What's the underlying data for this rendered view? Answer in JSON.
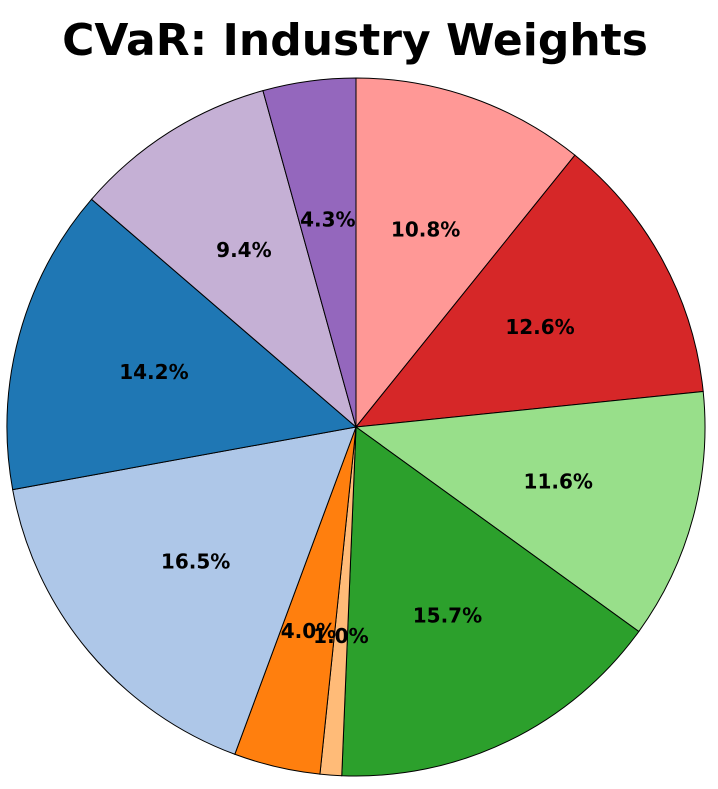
{
  "chart_data": {
    "type": "pie",
    "title": "CVaR: Industry Weights",
    "values": [
      10.8,
      12.6,
      11.6,
      15.7,
      1.0,
      4.0,
      16.5,
      14.2,
      9.4,
      4.3
    ],
    "labels": [
      "10.8%",
      "12.6%",
      "11.6%",
      "15.7%",
      "1.0%",
      "4.0%",
      "16.5%",
      "14.2%",
      "9.4%",
      "4.3%"
    ],
    "colors": [
      "#ff9896",
      "#d62728",
      "#98df8a",
      "#2ca02c",
      "#ffbb78",
      "#ff7f0e",
      "#aec7e8",
      "#1f77b4",
      "#c5b0d5",
      "#9467bd"
    ],
    "start": "12 o'clock",
    "direction": "clockwise",
    "legend": "none"
  }
}
